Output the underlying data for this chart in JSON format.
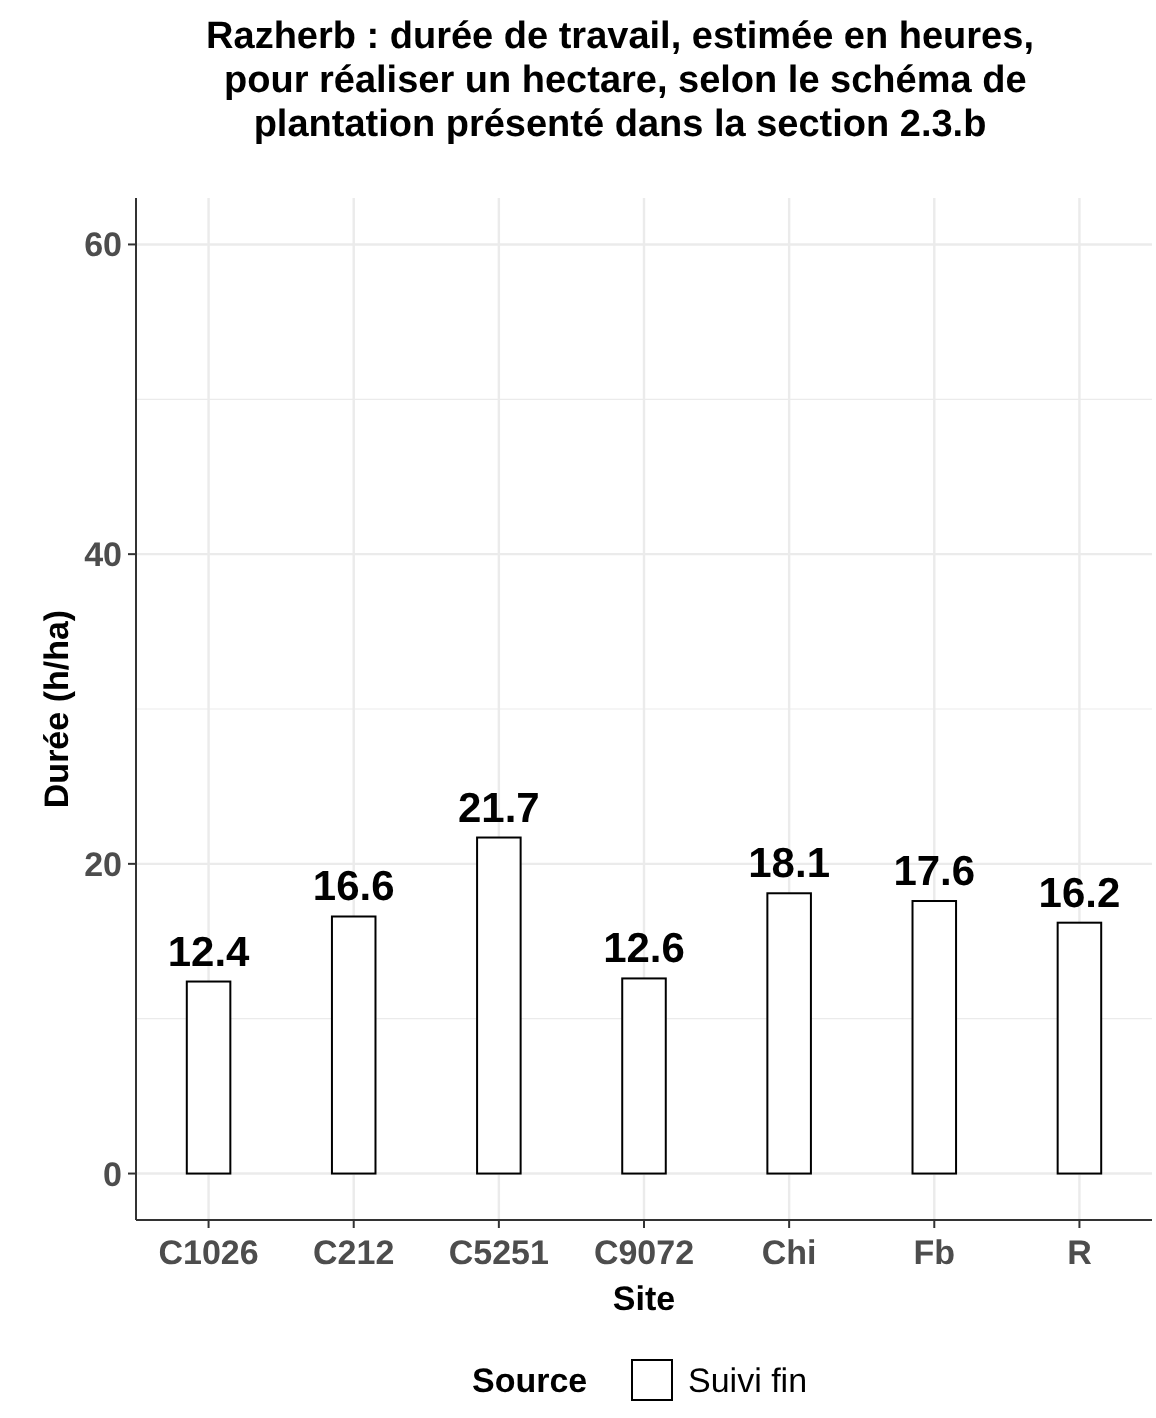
{
  "chart_data": {
    "type": "bar",
    "title": "Razherb : durée de travail, estimée en heures,\n pour réaliser un hectare, selon le schéma de\nplantation présenté dans la section 2.3.b",
    "xlabel": "Site",
    "ylabel": "Durée (h/ha)",
    "legend_title": "Source",
    "categories": [
      "C1026",
      "C212",
      "C5251",
      "C9072",
      "Chi",
      "Fb",
      "R"
    ],
    "series": [
      {
        "name": "Suivi fin",
        "color": "#ffffff",
        "values": [
          12.4,
          16.6,
          21.7,
          12.6,
          18.1,
          17.6,
          16.2
        ]
      }
    ],
    "ylim": [
      -3,
      63
    ],
    "yticks": [
      0,
      20,
      40,
      60
    ],
    "grid": true,
    "legend": "bottom",
    "data_labels": true
  }
}
